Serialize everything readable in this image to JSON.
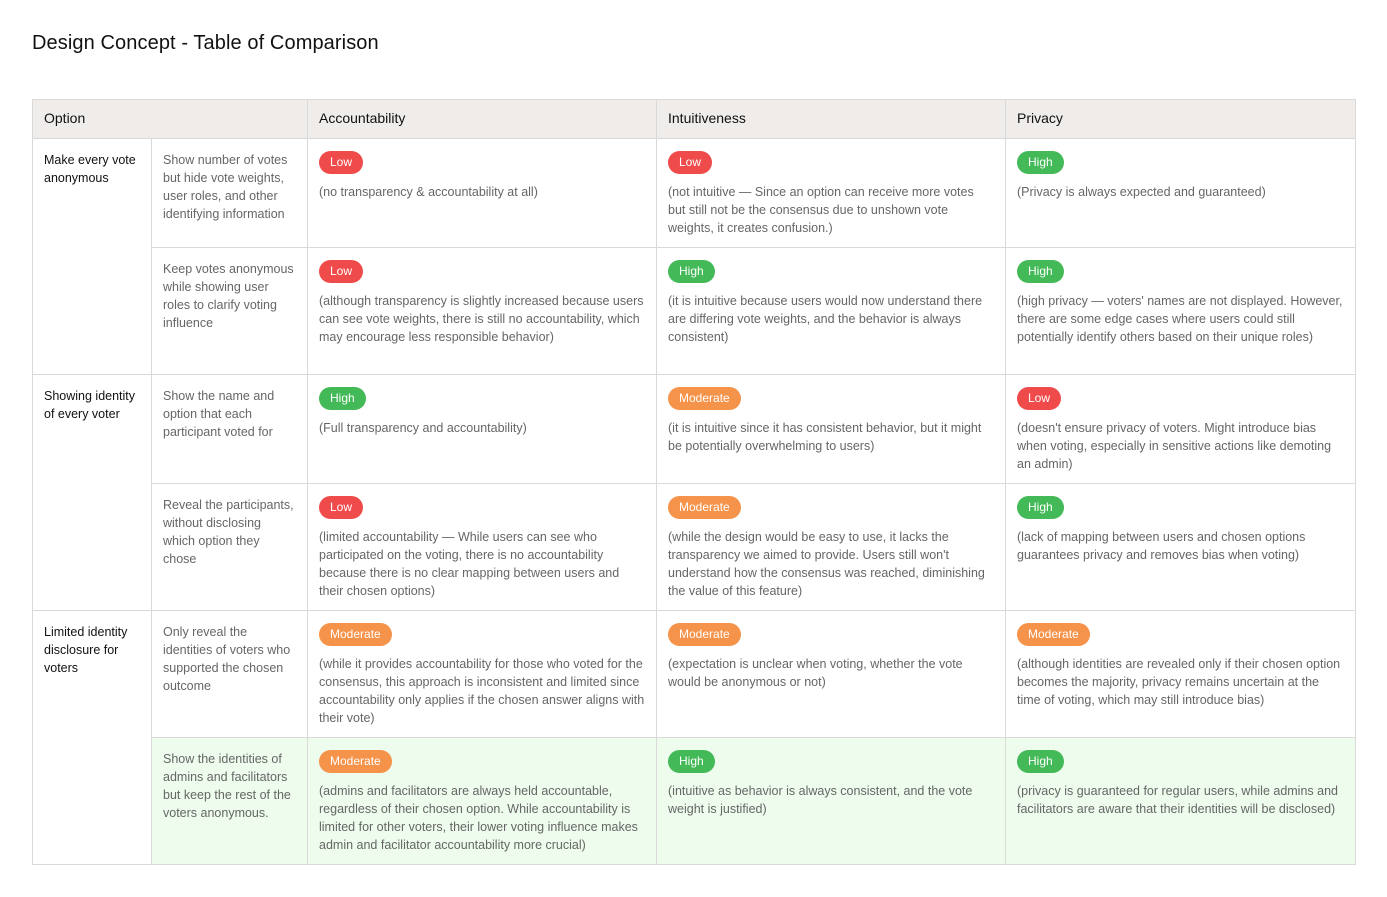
{
  "title": "Design Concept - Table of Comparison",
  "colors": {
    "low": "#ef4b4b",
    "high": "#44b957",
    "moderate": "#f5934a",
    "header_bg": "#efecea",
    "highlight_bg": "#edfced"
  },
  "headers": {
    "option": "Option",
    "accountability": "Accountability",
    "intuitiveness": "Intuitiveness",
    "privacy": "Privacy"
  },
  "groups": [
    {
      "option": "Make every vote anonymous",
      "rows": [
        {
          "variant": "Show number of votes but hide vote weights, user roles, and other identifying information",
          "accountability": {
            "level": "Low",
            "note": "(no transparency & accountability at all)"
          },
          "intuitiveness": {
            "level": "Low",
            "note": "(not intuitive — Since an option can receive more votes but still not be the consensus due to unshown vote weights, it creates confusion.)"
          },
          "privacy": {
            "level": "High",
            "note": "(Privacy is always expected and guaranteed)"
          }
        },
        {
          "variant": "Keep votes anonymous while showing user roles to clarify voting influence",
          "accountability": {
            "level": "Low",
            "note": "(although transparency is slightly increased because users can see vote weights, there is still no accountability, which may encourage less responsible behavior)"
          },
          "intuitiveness": {
            "level": "High",
            "note": "(it is intuitive because users would now understand there are differing vote weights, and the behavior is always consistent)"
          },
          "privacy": {
            "level": "High",
            "note": "(high privacy — voters' names are not displayed. However, there are some edge cases where users could still potentially identify others based on their unique roles)"
          }
        }
      ]
    },
    {
      "option": "Showing identity of every voter",
      "rows": [
        {
          "variant": "Show the name and option that each participant voted for",
          "accountability": {
            "level": "High",
            "note": "(Full transparency and accountability)"
          },
          "intuitiveness": {
            "level": "Moderate",
            "note": "(it is intuitive since it has consistent behavior, but it might be potentially overwhelming to users)"
          },
          "privacy": {
            "level": "Low",
            "note": "(doesn't ensure privacy of voters. Might introduce bias when voting, especially in sensitive actions like demoting an admin)"
          }
        },
        {
          "variant": "Reveal the participants, without disclosing which option they chose",
          "accountability": {
            "level": "Low",
            "note": "(limited accountability — While users can see who participated on the voting, there is no accountability because there is no clear mapping between users and their chosen options)"
          },
          "intuitiveness": {
            "level": "Moderate",
            "note": "(while the design would be easy to use, it lacks the transparency we aimed to provide. Users still won't understand how the consensus was reached, diminishing the value of this feature)"
          },
          "privacy": {
            "level": "High",
            "note": "(lack of mapping between users and chosen options guarantees privacy and removes bias when voting)"
          }
        }
      ]
    },
    {
      "option": "Limited identity disclosure for voters",
      "rows": [
        {
          "variant": "Only reveal the identities of voters who supported the chosen outcome",
          "accountability": {
            "level": "Moderate",
            "note": "(while it provides accountability for those who voted for the consensus, this approach is inconsistent and limited since accountability only applies if the chosen answer aligns with their vote)"
          },
          "intuitiveness": {
            "level": "Moderate",
            "note": "(expectation is unclear when voting, whether the vote would be anonymous or not)"
          },
          "privacy": {
            "level": "Moderate",
            "note": "(although identities are revealed only if their chosen option becomes the majority, privacy remains uncertain at the time of voting, which may still introduce bias)"
          }
        },
        {
          "variant": "Show the identities of admins and facilitators but keep the rest of the voters anonymous.",
          "highlighted": true,
          "accountability": {
            "level": "Moderate",
            "note": "(admins and facilitators are always held accountable, regardless of their chosen option. While accountability is limited for other voters, their lower voting influence makes admin and facilitator accountability more crucial)"
          },
          "intuitiveness": {
            "level": "High",
            "note": "(intuitive as behavior is always consistent, and the vote weight is justified)"
          },
          "privacy": {
            "level": "High",
            "note": "(privacy is guaranteed for regular users, while admins and facilitators are aware that their identities will be disclosed)"
          }
        }
      ]
    }
  ]
}
